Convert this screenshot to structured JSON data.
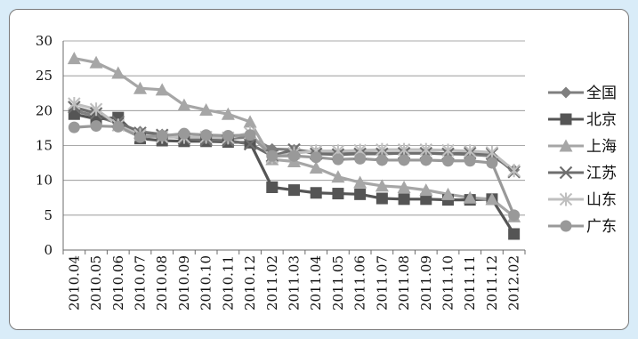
{
  "chart_data": {
    "type": "line",
    "title": "",
    "xlabel": "",
    "ylabel": "",
    "ylim": [
      0,
      30
    ],
    "yticks": [
      "0",
      "5",
      "10",
      "15",
      "20",
      "25",
      "30"
    ],
    "grid": true,
    "legend": "right",
    "categories": [
      "2010.04",
      "2010.05",
      "2010.06",
      "2010.07",
      "2010.08",
      "2010.09",
      "2010.10",
      "2010.11",
      "2010.12",
      "2011.02",
      "2011.03",
      "2011.04",
      "2011.05",
      "2011.06",
      "2011.07",
      "2011.08",
      "2011.09",
      "2011.10",
      "2011.11",
      "2011.12",
      "2012.02"
    ],
    "series": [
      {
        "name": "全国",
        "color": "#7f7f7f",
        "marker": "diamond",
        "values": [
          20.0,
          19.2,
          18.2,
          17.0,
          16.6,
          16.2,
          16.0,
          16.0,
          16.2,
          14.5,
          14.4,
          14.0,
          13.8,
          13.9,
          13.9,
          13.9,
          13.9,
          13.8,
          13.7,
          13.5,
          11.5
        ]
      },
      {
        "name": "北京",
        "color": "#555555",
        "marker": "square",
        "values": [
          19.5,
          18.8,
          19.0,
          16.0,
          15.7,
          15.6,
          15.6,
          15.5,
          15.4,
          9.0,
          8.6,
          8.2,
          8.1,
          8.0,
          7.4,
          7.3,
          7.3,
          7.2,
          7.2,
          7.3,
          2.3
        ]
      },
      {
        "name": "上海",
        "color": "#a6a6a6",
        "marker": "triangle",
        "values": [
          27.5,
          26.9,
          25.4,
          23.2,
          23.0,
          20.8,
          20.1,
          19.5,
          18.4,
          13.0,
          12.7,
          11.8,
          10.5,
          9.7,
          9.2,
          9.0,
          8.6,
          8.0,
          7.5,
          7.3,
          4.8
        ]
      },
      {
        "name": "江苏",
        "color": "#6e6e6e",
        "marker": "x",
        "values": [
          20.5,
          19.6,
          18.4,
          16.8,
          16.5,
          16.0,
          15.8,
          15.7,
          15.2,
          13.5,
          14.4,
          13.8,
          13.7,
          13.8,
          13.8,
          13.9,
          13.9,
          13.8,
          13.9,
          13.8,
          11.2
        ]
      },
      {
        "name": "山东",
        "color": "#bfbfbf",
        "marker": "star",
        "values": [
          21.0,
          20.2,
          17.9,
          16.5,
          16.2,
          16.2,
          16.2,
          16.1,
          16.8,
          13.3,
          13.9,
          14.2,
          14.2,
          14.3,
          14.4,
          14.4,
          14.4,
          14.3,
          14.2,
          14.0,
          11.4
        ]
      },
      {
        "name": "广东",
        "color": "#999999",
        "marker": "circle",
        "values": [
          17.6,
          17.8,
          17.7,
          16.2,
          16.4,
          16.7,
          16.5,
          16.4,
          16.5,
          13.5,
          13.5,
          13.3,
          13.0,
          13.1,
          12.9,
          12.9,
          12.9,
          12.8,
          12.8,
          12.5,
          5.0
        ]
      }
    ]
  }
}
